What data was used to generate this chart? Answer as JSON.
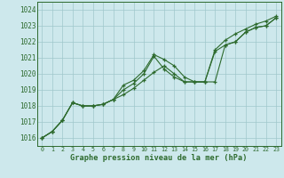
{
  "xlabel": "Graphe pression niveau de la mer (hPa)",
  "x": [
    0,
    1,
    2,
    3,
    4,
    5,
    6,
    7,
    8,
    9,
    10,
    11,
    12,
    13,
    14,
    15,
    16,
    17,
    18,
    19,
    20,
    21,
    22,
    23
  ],
  "line1": [
    1016.0,
    1016.4,
    1017.1,
    1018.2,
    1018.0,
    1018.0,
    1018.1,
    1018.4,
    1018.7,
    1019.1,
    1019.6,
    1020.1,
    1020.5,
    1020.0,
    1019.5,
    1019.5,
    1019.5,
    1019.5,
    1021.8,
    1022.0,
    1022.6,
    1022.9,
    1023.0,
    1023.5
  ],
  "line2": [
    1016.0,
    1016.4,
    1017.1,
    1018.2,
    1018.0,
    1018.0,
    1018.1,
    1018.4,
    1019.0,
    1019.4,
    1020.0,
    1021.1,
    1020.3,
    1019.8,
    1019.5,
    1019.5,
    1019.5,
    1021.4,
    1021.8,
    1022.0,
    1022.6,
    1022.9,
    1023.0,
    1023.5
  ],
  "line3": [
    1016.0,
    1016.4,
    1017.1,
    1018.2,
    1018.0,
    1018.0,
    1018.1,
    1018.4,
    1019.3,
    1019.6,
    1020.2,
    1021.2,
    1020.9,
    1020.5,
    1019.8,
    1019.5,
    1019.5,
    1021.5,
    1022.1,
    1022.5,
    1022.8,
    1023.1,
    1023.3,
    1023.6
  ],
  "line_color": "#2d6a2d",
  "bg_color": "#cde8ec",
  "grid_color": "#a0c8cc",
  "ylim": [
    1015.5,
    1024.5
  ],
  "xlim": [
    -0.5,
    23.5
  ],
  "yticks": [
    1016,
    1017,
    1018,
    1019,
    1020,
    1021,
    1022,
    1023,
    1024
  ],
  "xticks": [
    0,
    1,
    2,
    3,
    4,
    5,
    6,
    7,
    8,
    9,
    10,
    11,
    12,
    13,
    14,
    15,
    16,
    17,
    18,
    19,
    20,
    21,
    22,
    23
  ],
  "ytick_fontsize": 5.5,
  "xtick_fontsize": 4.8,
  "xlabel_fontsize": 6.2
}
